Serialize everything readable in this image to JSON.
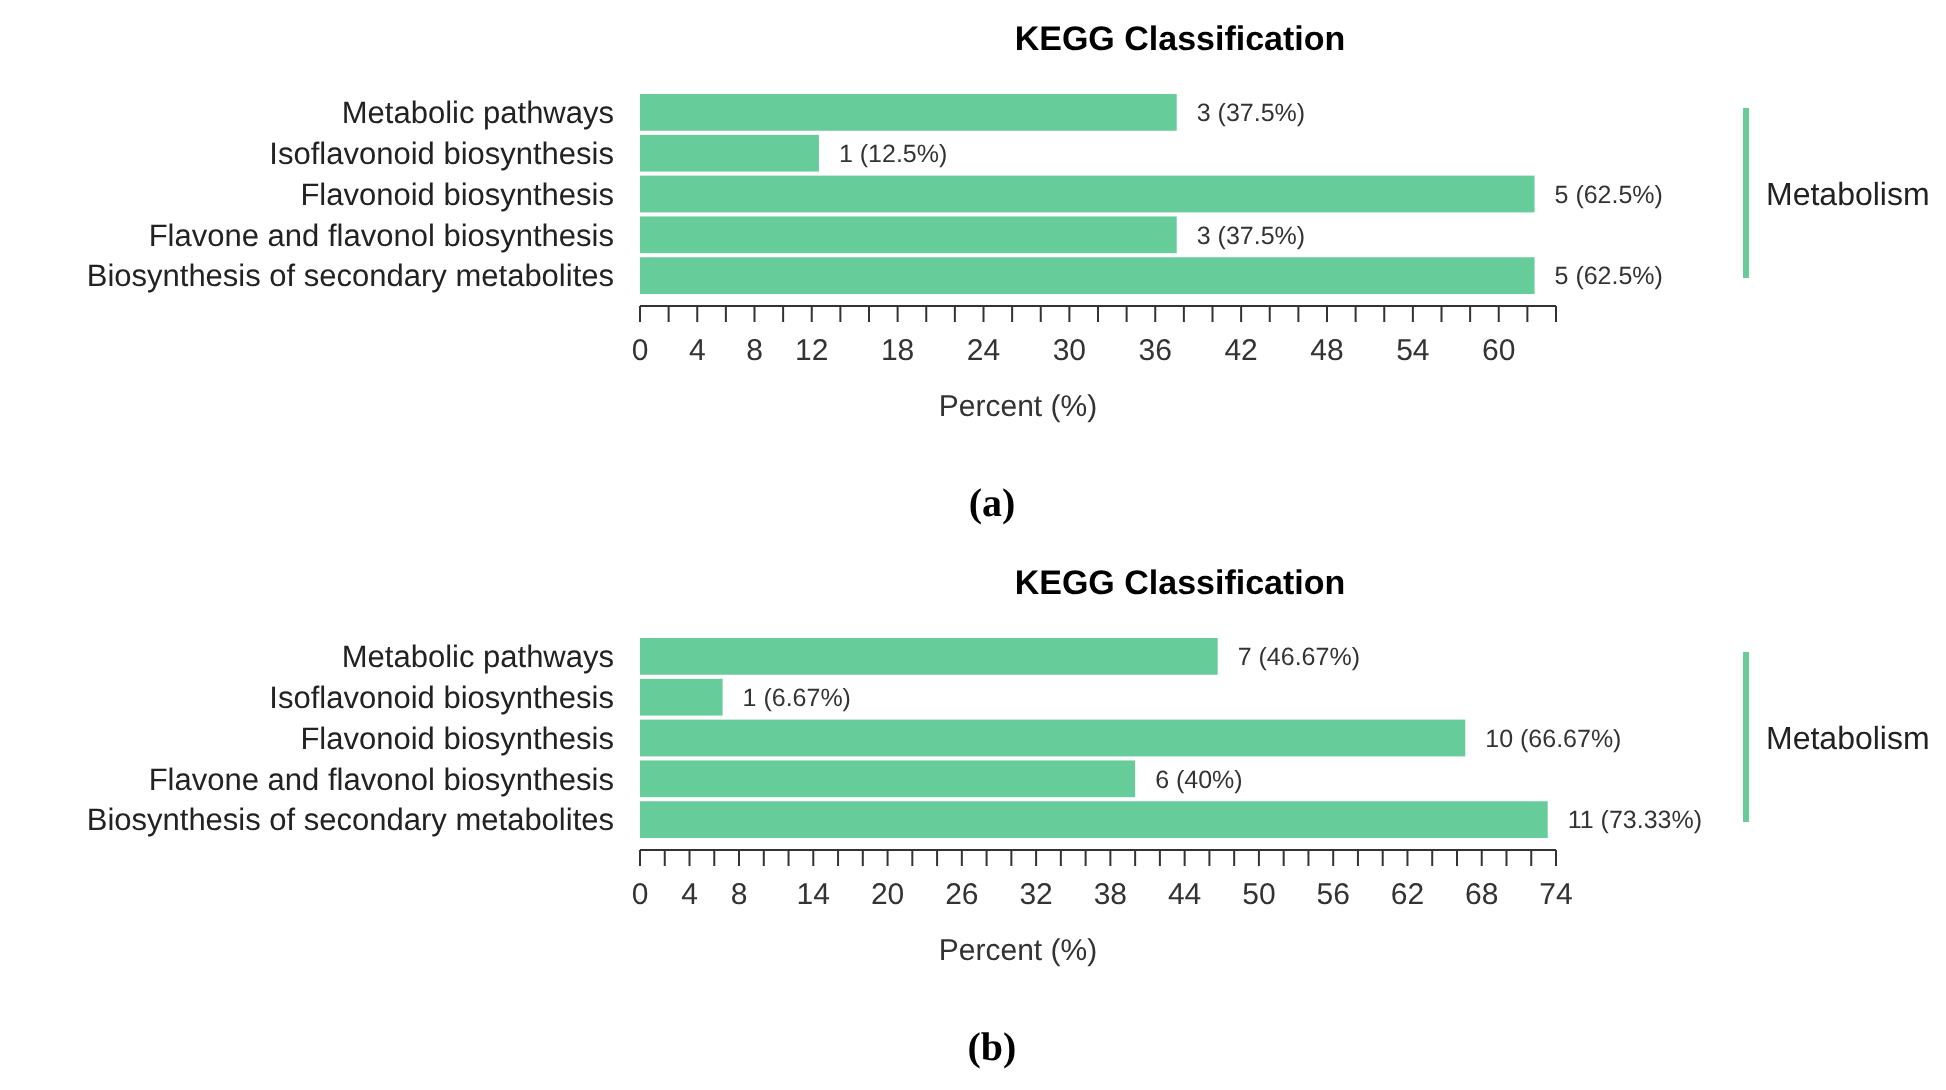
{
  "chart_data": [
    {
      "type": "bar",
      "orientation": "horizontal",
      "title": "KEGG Classification",
      "xlabel": "Percent (%)",
      "categories": [
        "Metabolic pathways",
        "Isoflavonoid biosynthesis",
        "Flavonoid biosynthesis",
        "Flavone and flavonol biosynthesis",
        "Biosynthesis of secondary metabolites"
      ],
      "values": [
        37.5,
        12.5,
        62.5,
        37.5,
        62.5
      ],
      "value_labels": [
        "3 (37.5%)",
        "1 (12.5%)",
        "5 (62.5%)",
        "3 (37.5%)",
        "5 (62.5%)"
      ],
      "color": "#66cc99",
      "xlim": [
        0,
        64
      ],
      "xticks": [
        0,
        {
          "value": 2,
          "label": null
        },
        4,
        {
          "value": 6,
          "label": null
        },
        8,
        {
          "value": 10,
          "label": null
        },
        12,
        {
          "value": 14,
          "label": null
        },
        {
          "value": 16,
          "label": null
        },
        18,
        {
          "value": 20,
          "label": null
        },
        {
          "value": 22,
          "label": null
        },
        24,
        {
          "value": 26,
          "label": null
        },
        {
          "value": 28,
          "label": null
        },
        30,
        {
          "value": 32,
          "label": null
        },
        {
          "value": 34,
          "label": null
        },
        36,
        {
          "value": 38,
          "label": null
        },
        {
          "value": 40,
          "label": null
        },
        42,
        {
          "value": 44,
          "label": null
        },
        {
          "value": 46,
          "label": null
        },
        48,
        {
          "value": 50,
          "label": null
        },
        {
          "value": 52,
          "label": null
        },
        54,
        {
          "value": 56,
          "label": null
        },
        {
          "value": 58,
          "label": null
        },
        60,
        {
          "value": 62,
          "label": null
        },
        {
          "value": 64,
          "label": null
        }
      ],
      "grid": false,
      "annotations": [
        "Metabolism",
        "(a)"
      ]
    },
    {
      "type": "bar",
      "orientation": "horizontal",
      "title": "KEGG Classification",
      "xlabel": "Percent (%)",
      "categories": [
        "Metabolic pathways",
        "Isoflavonoid biosynthesis",
        "Flavonoid biosynthesis",
        "Flavone and flavonol biosynthesis",
        "Biosynthesis of secondary metabolites"
      ],
      "values": [
        46.67,
        6.67,
        66.67,
        40,
        73.33
      ],
      "value_labels": [
        "7 (46.67%)",
        "1 (6.67%)",
        "10 (66.67%)",
        "6 (40%)",
        "11 (73.33%)"
      ],
      "color": "#66cc99",
      "xlim": [
        0,
        74
      ],
      "xticks": [
        0,
        {
          "value": 2,
          "label": null
        },
        4,
        {
          "value": 6,
          "label": null
        },
        8,
        {
          "value": 10,
          "label": null
        },
        {
          "value": 12,
          "label": null
        },
        14,
        {
          "value": 16,
          "label": null
        },
        {
          "value": 18,
          "label": null
        },
        20,
        {
          "value": 22,
          "label": null
        },
        {
          "value": 24,
          "label": null
        },
        26,
        {
          "value": 28,
          "label": null
        },
        {
          "value": 30,
          "label": null
        },
        32,
        {
          "value": 34,
          "label": null
        },
        {
          "value": 36,
          "label": null
        },
        38,
        {
          "value": 40,
          "label": null
        },
        {
          "value": 42,
          "label": null
        },
        44,
        {
          "value": 46,
          "label": null
        },
        {
          "value": 48,
          "label": null
        },
        50,
        {
          "value": 52,
          "label": null
        },
        {
          "value": 54,
          "label": null
        },
        56,
        {
          "value": 58,
          "label": null
        },
        {
          "value": 60,
          "label": null
        },
        62,
        {
          "value": 64,
          "label": null
        },
        {
          "value": 66,
          "label": null
        },
        68,
        {
          "value": 70,
          "label": null
        },
        {
          "value": 72,
          "label": null
        },
        74
      ],
      "grid": false,
      "annotations": [
        "Metabolism",
        "(b)"
      ]
    }
  ]
}
